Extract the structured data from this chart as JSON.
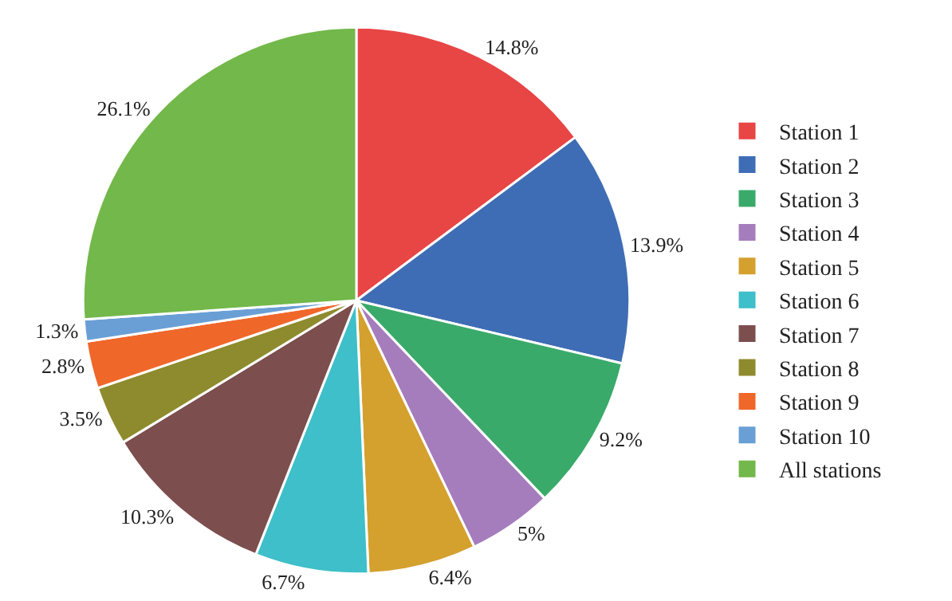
{
  "chart_data": {
    "type": "pie",
    "categories": [
      "Station 1",
      "Station 2",
      "Station 3",
      "Station 4",
      "Station 5",
      "Station 6",
      "Station 7",
      "Station 8",
      "Station 9",
      "Station 10",
      "All stations"
    ],
    "values": [
      14.8,
      13.9,
      9.2,
      5,
      6.4,
      6.7,
      10.3,
      3.5,
      2.8,
      1.3,
      26.1
    ],
    "value_labels": [
      "14.8%",
      "13.9%",
      "9.2%",
      "5%",
      "6.4%",
      "6.7%",
      "10.3%",
      "3.5%",
      "2.8%",
      "1.3%",
      "26.1%"
    ],
    "colors": [
      "#e84545",
      "#3f6db5",
      "#3aaa6a",
      "#a57dbd",
      "#d4a02e",
      "#3ebfc9",
      "#7d4e4e",
      "#8e8b2e",
      "#f0672a",
      "#6a9fd6",
      "#73b84a"
    ],
    "legend": "right"
  }
}
